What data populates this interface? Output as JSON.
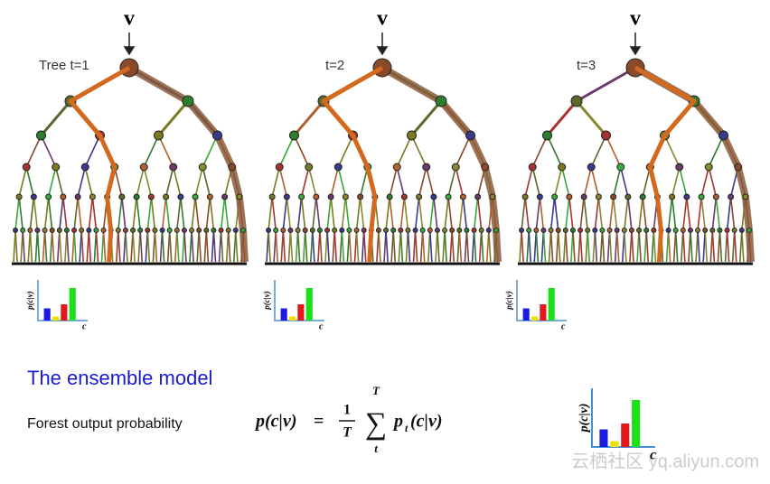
{
  "trees": [
    {
      "input": "v",
      "label": "Tree t=1"
    },
    {
      "input": "v",
      "label": "t=2"
    },
    {
      "input": "v",
      "label": "t=3"
    }
  ],
  "histogram": {
    "y_label": "p(c|v)",
    "x_label": "c"
  },
  "heading": "The ensemble model",
  "formula": {
    "text": "Forest output probability",
    "lhs": "p(c|v)",
    "equals": "=",
    "numerator": "1",
    "denominator": "T",
    "sum_top": "T",
    "sum_bottom": "t",
    "term": "p",
    "term_sub": "t",
    "term_args": "(c|v)"
  },
  "watermark": "云栖社区 yq.aliyun.com"
}
